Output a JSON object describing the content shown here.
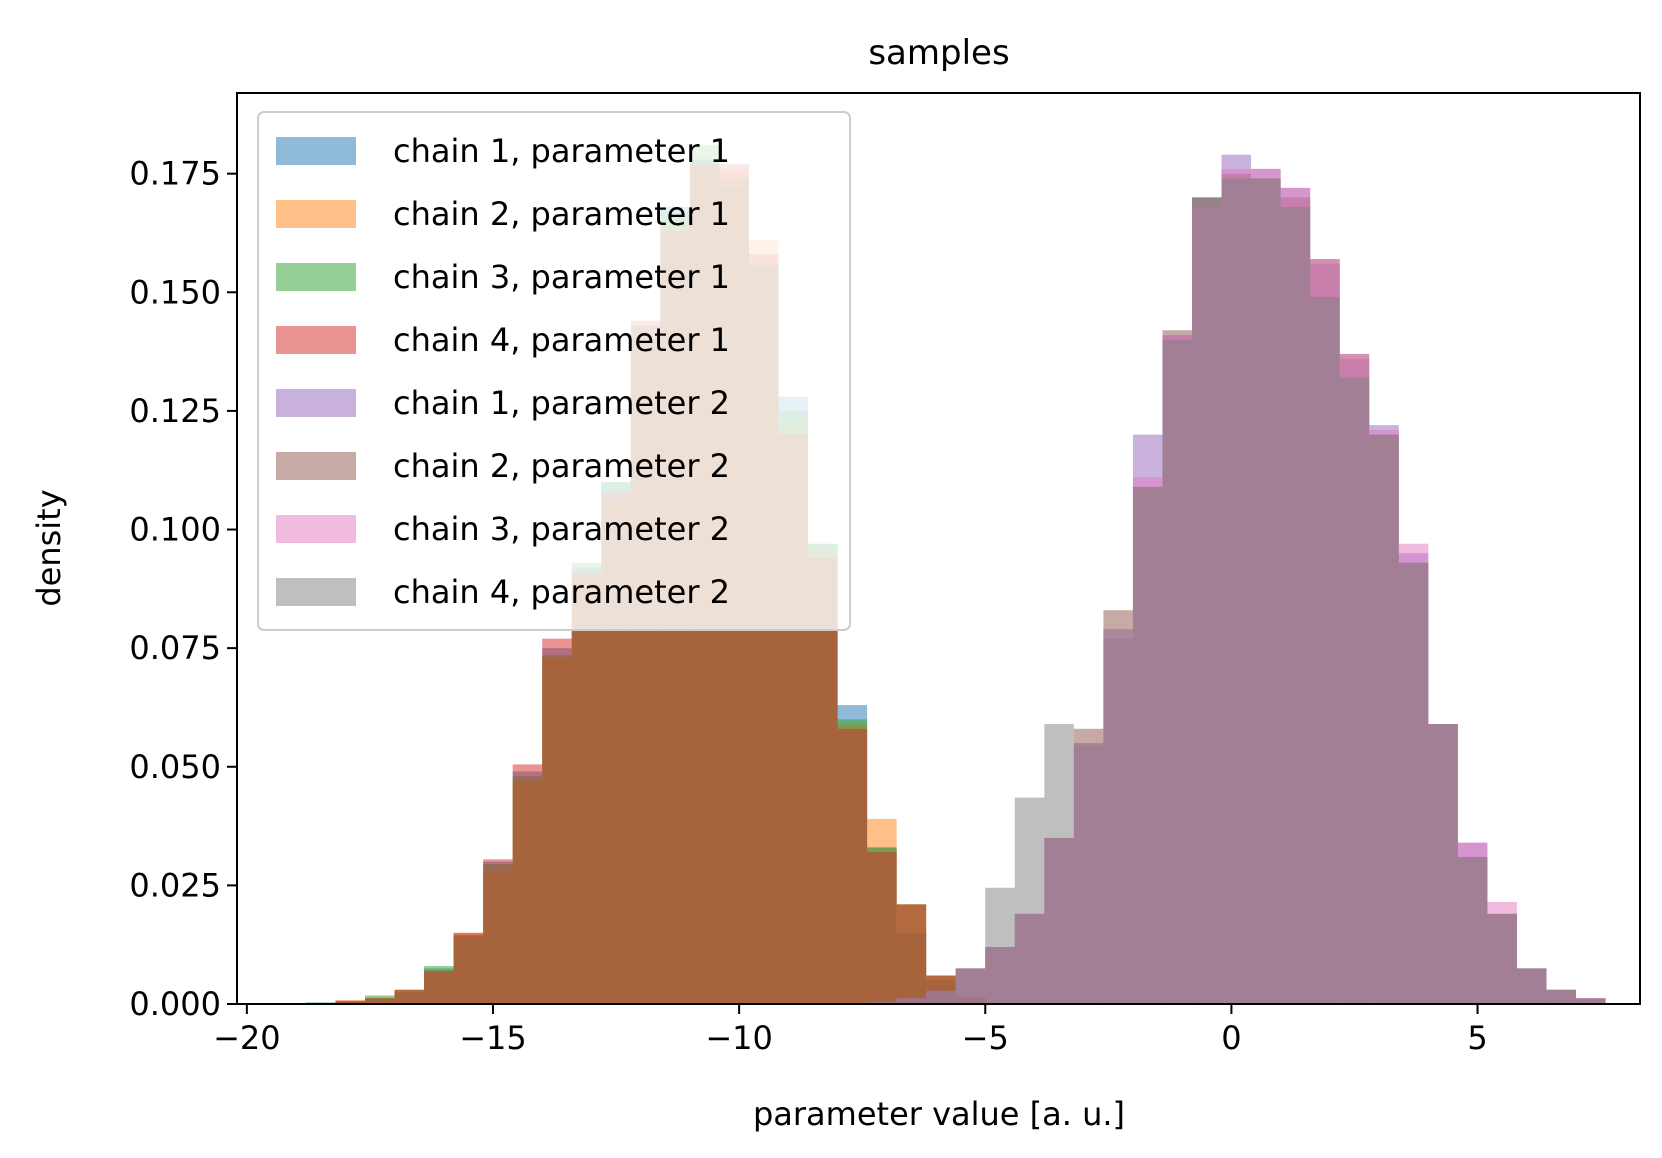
{
  "chart_data": {
    "type": "histogram",
    "title": "samples",
    "xlabel": "parameter value [a. u.]",
    "ylabel": "density",
    "xlim": [
      -20.2,
      8.3
    ],
    "ylim": [
      0,
      0.192
    ],
    "bin_width": 0.6,
    "x_ticks": [
      -20,
      -15,
      -10,
      -5,
      0,
      5
    ],
    "x_tick_labels": [
      "−20",
      "−15",
      "−10",
      "−5",
      "0",
      "5"
    ],
    "y_ticks": [
      0,
      0.025,
      0.05,
      0.075,
      0.1,
      0.125,
      0.15,
      0.175
    ],
    "y_tick_labels": [
      "0.000",
      "0.025",
      "0.050",
      "0.075",
      "0.100",
      "0.125",
      "0.150",
      "0.175"
    ],
    "grid": false,
    "legend_position": "top-left",
    "series": [
      {
        "name": "chain 1, parameter 1",
        "color": "#1f77b4",
        "bin_start": -18.8,
        "values": [
          0.0003,
          0.0005,
          0.0012,
          0.0025,
          0.0075,
          0.0145,
          0.03,
          0.049,
          0.075,
          0.092,
          0.11,
          0.14,
          0.168,
          0.178,
          0.172,
          0.155,
          0.128,
          0.097,
          0.063,
          0.033,
          0.015,
          0.005,
          0.0015
        ]
      },
      {
        "name": "chain 2, parameter 1",
        "color": "#ff7f0e",
        "bin_start": -18.8,
        "values": [
          0.0002,
          0.0008,
          0.0014,
          0.003,
          0.007,
          0.015,
          0.028,
          0.047,
          0.073,
          0.09,
          0.106,
          0.14,
          0.165,
          0.176,
          0.176,
          0.161,
          0.122,
          0.096,
          0.059,
          0.039,
          0.021,
          0.006,
          0.0015
        ]
      },
      {
        "name": "chain 3, parameter 1",
        "color": "#2ca02c",
        "bin_start": -18.8,
        "values": [
          0.0003,
          0.0006,
          0.0018,
          0.003,
          0.008,
          0.0145,
          0.0295,
          0.048,
          0.0735,
          0.093,
          0.11,
          0.143,
          0.167,
          0.181,
          0.174,
          0.156,
          0.125,
          0.097,
          0.06,
          0.033,
          0.021,
          0.006,
          0.0015
        ]
      },
      {
        "name": "chain 4, parameter 1",
        "color": "#d62728",
        "bin_start": -18.8,
        "values": [
          0.0002,
          0.0007,
          0.0012,
          0.003,
          0.007,
          0.015,
          0.0305,
          0.0505,
          0.077,
          0.091,
          0.108,
          0.144,
          0.163,
          0.177,
          0.177,
          0.158,
          0.12,
          0.094,
          0.058,
          0.032,
          0.021,
          0.006,
          0.0015
        ]
      },
      {
        "name": "chain 1, parameter 2",
        "color": "#9467bd",
        "bin_start": -7.4,
        "values": [
          0.0004,
          0.0012,
          0.0028,
          0.0075,
          0.012,
          0.019,
          0.035,
          0.055,
          0.077,
          0.12,
          0.141,
          0.17,
          0.179,
          0.176,
          0.172,
          0.156,
          0.136,
          0.122,
          0.095,
          0.059,
          0.034,
          0.019,
          0.0075,
          0.003,
          0.0012
        ]
      },
      {
        "name": "chain 2, parameter 2",
        "color": "#8c564b",
        "bin_start": -7.4,
        "values": [
          0.0004,
          0.0012,
          0.0028,
          0.0075,
          0.012,
          0.019,
          0.035,
          0.058,
          0.083,
          0.109,
          0.142,
          0.17,
          0.175,
          0.174,
          0.17,
          0.157,
          0.137,
          0.12,
          0.093,
          0.059,
          0.031,
          0.019,
          0.0075,
          0.003,
          0.0012
        ]
      },
      {
        "name": "chain 3, parameter 2",
        "color": "#e377c2",
        "bin_start": -7.4,
        "values": [
          0.0004,
          0.0012,
          0.0028,
          0.0075,
          0.012,
          0.019,
          0.035,
          0.0545,
          0.079,
          0.111,
          0.141,
          0.168,
          0.176,
          0.176,
          0.172,
          0.157,
          0.137,
          0.121,
          0.097,
          0.059,
          0.034,
          0.0215,
          0.007,
          0.003,
          0.0012
        ]
      },
      {
        "name": "chain 4, parameter 2",
        "color": "#7f7f7f",
        "bin_start": -7.4,
        "values": [
          0.0004,
          0.0012,
          0.0028,
          0.0075,
          0.0245,
          0.0435,
          0.059,
          0.0545,
          0.079,
          0.109,
          0.14,
          0.17,
          0.174,
          0.174,
          0.168,
          0.149,
          0.132,
          0.12,
          0.093,
          0.059,
          0.031,
          0.019,
          0.0075,
          0.003,
          0.0012
        ]
      }
    ]
  }
}
